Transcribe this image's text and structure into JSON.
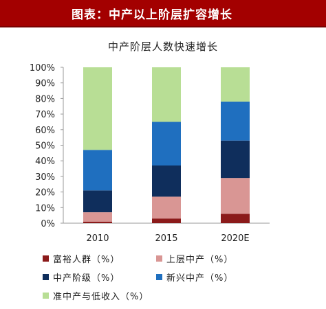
{
  "header": {
    "title": "图表：中产以上阶层扩容增长"
  },
  "chart_data": {
    "type": "bar",
    "stacked": true,
    "title": "中产阶层人数快速增长",
    "categories": [
      "2010",
      "2015",
      "2020E"
    ],
    "series": [
      {
        "name": "富裕人群（%）",
        "color": "#8b1a1a",
        "values": [
          1,
          3,
          6
        ]
      },
      {
        "name": "上层中产（%）",
        "color": "#d99694",
        "values": [
          6,
          14,
          23
        ]
      },
      {
        "name": "中产阶级（%）",
        "color": "#0f2e5c",
        "values": [
          14,
          20,
          24
        ]
      },
      {
        "name": "新兴中产（%）",
        "color": "#1f6fbf",
        "values": [
          26,
          28,
          25
        ]
      },
      {
        "name": "准中产与低收入（%）",
        "color": "#b8de95",
        "values": [
          53,
          35,
          22
        ]
      }
    ],
    "ylim": [
      0,
      100
    ],
    "yticks": [
      "0%",
      "10%",
      "20%",
      "30%",
      "40%",
      "50%",
      "60%",
      "70%",
      "80%",
      "90%",
      "100%"
    ],
    "grid": false,
    "legend_position": "bottom"
  }
}
